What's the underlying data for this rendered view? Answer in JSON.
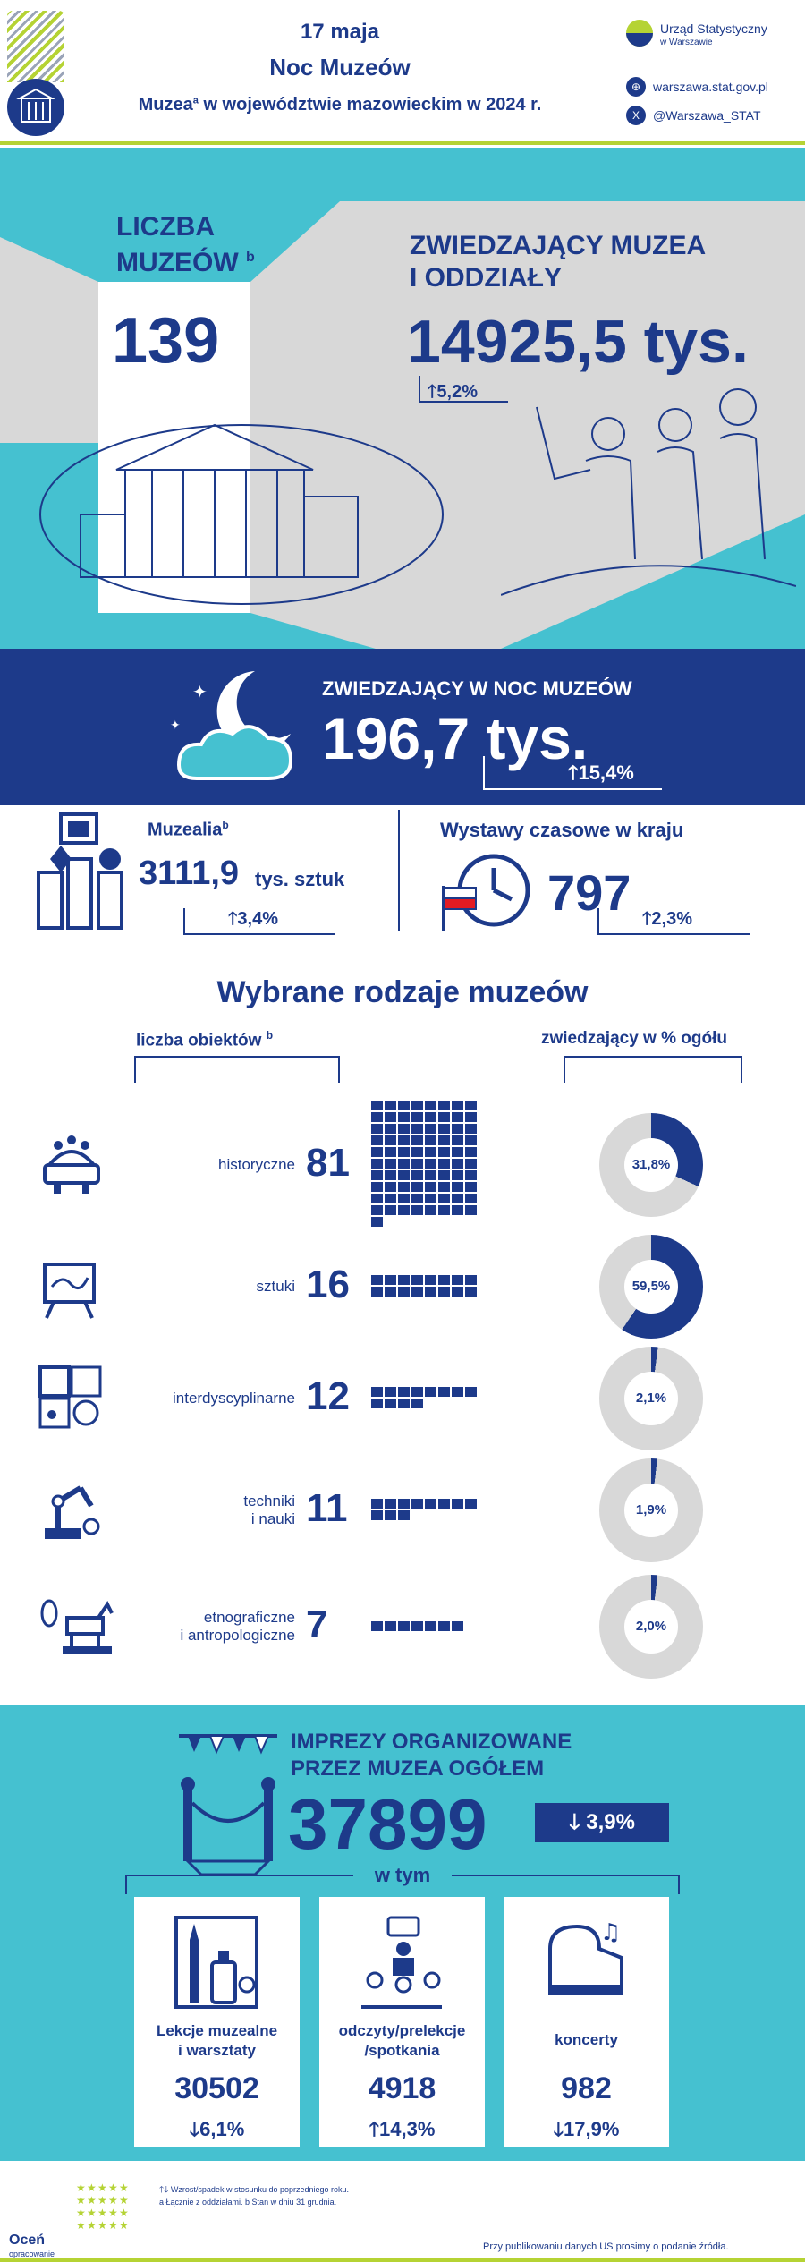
{
  "header": {
    "date": "17 maja",
    "event": "Noc Muzeów",
    "subtitle_a": "Muzea",
    "subtitle_sup": "a",
    "subtitle_b": " w województwie mazowieckim w 2024 r.",
    "org_name": "Urząd Statystyczny",
    "org_city": "w Warszawie",
    "website": "warszawa.stat.gov.pl",
    "social": "@Warszawa_STAT"
  },
  "hero": {
    "museums_label_1": "LICZBA",
    "museums_label_2": "MUZEÓW",
    "museums_sup": "b",
    "museums_value": "139",
    "visitors_label_1": "ZWIEDZAJĄCY MUZEA",
    "visitors_label_2": "I ODDZIAŁY",
    "visitors_value": "14925,5 tys.",
    "visitors_change": "5,2%"
  },
  "night": {
    "label": "ZWIEDZAJĄCY W NOC MUZEÓW",
    "value": "196,7 tys.",
    "change": "15,4%"
  },
  "stats": {
    "exhibits_label": "Muzealia",
    "exhibits_sup": "b",
    "exhibits_value": "3111,9",
    "exhibits_unit": "tys. sztuk",
    "exhibits_change": "3,4%",
    "exhibitions_label": "Wystawy czasowe w kraju",
    "exhibitions_value": "797",
    "exhibitions_change": "2,3%"
  },
  "types": {
    "title": "Wybrane rodzaje muzeów",
    "count_header": "liczba obiektów",
    "count_sup": "b",
    "share_header": "zwiedzający w % ogółu",
    "items": [
      {
        "name": "historyczne",
        "name2": "",
        "count": "81",
        "share": "31,8%"
      },
      {
        "name": "sztuki",
        "name2": "",
        "count": "16",
        "share": "59,5%"
      },
      {
        "name": "interdyscyplinarne",
        "name2": "",
        "count": "12",
        "share": "2,1%"
      },
      {
        "name": "techniki",
        "name2": "i nauki",
        "count": "11",
        "share": "1,9%"
      },
      {
        "name": "etnograficzne",
        "name2": "i antropologiczne",
        "count": "7",
        "share": "2,0%"
      }
    ]
  },
  "chart_data": {
    "type": "donut",
    "categories": [
      "historyczne",
      "sztuki",
      "interdyscyplinarne",
      "techniki i nauki",
      "etnograficzne i antropologiczne"
    ],
    "counts": [
      81,
      16,
      12,
      11,
      7
    ],
    "values": [
      31.8,
      59.5,
      2.1,
      1.9,
      2.0
    ]
  },
  "events": {
    "label_1": "IMPREZY ORGANIZOWANE",
    "label_2": "PRZEZ MUZEA OGÓŁEM",
    "value": "37899",
    "change": "3,9%",
    "sub_label": "w tym",
    "cards": [
      {
        "label_1": "Lekcje muzealne",
        "label_2": "i warsztaty",
        "value": "30502",
        "change": "6,1%"
      },
      {
        "label_1": "odczyty/prelekcje",
        "label_2": "/spotkania",
        "value": "4918",
        "change": "14,3%"
      },
      {
        "label_1": "koncerty",
        "label_2": "",
        "value": "982",
        "change": "17,9%"
      }
    ]
  },
  "footer": {
    "note_1": "Wzrost/spadek w stosunku do poprzedniego roku.",
    "note_2": "a Łącznie z oddziałami. b Stan w dniu 31 grudnia.",
    "rate_1": "Oceń",
    "rate_2": "opracowanie",
    "source": "Przy publikowaniu danych US prosimy o podanie źródła."
  },
  "colors": {
    "navy": "#1d3a8a",
    "teal": "#45c1d0",
    "green": "#b5d334",
    "grey": "#d8d8d8"
  }
}
